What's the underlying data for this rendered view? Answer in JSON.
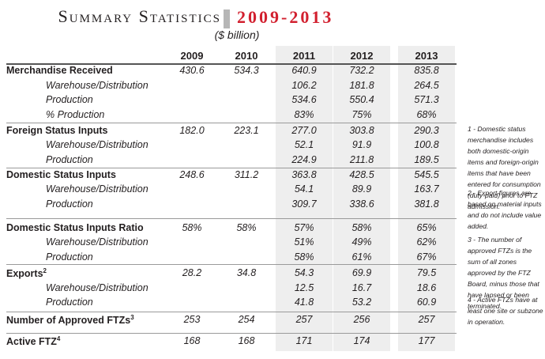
{
  "title": {
    "left": "Summary Statistics",
    "right": "2009-2013",
    "unit": "($ billion)"
  },
  "years": [
    "2009",
    "2010",
    "2011",
    "2012",
    "2013"
  ],
  "rows": [
    {
      "label": "Merchandise Received",
      "type": "main",
      "values": [
        "430.6",
        "534.3",
        "640.9",
        "732.2",
        "835.8"
      ]
    },
    {
      "label": "Warehouse/Distribution",
      "type": "sub",
      "values": [
        "",
        "",
        "106.2",
        "181.8",
        "264.5"
      ]
    },
    {
      "label": "Production",
      "type": "sub",
      "values": [
        "",
        "",
        "534.6",
        "550.4",
        "571.3"
      ]
    },
    {
      "label": "% Production",
      "type": "sub",
      "values": [
        "",
        "",
        "83%",
        "75%",
        "68%"
      ]
    },
    {
      "label": "Foreign Status Inputs",
      "type": "main",
      "values": [
        "182.0",
        "223.1",
        "277.0",
        "303.8",
        "290.3"
      ]
    },
    {
      "label": "Warehouse/Distribution",
      "type": "sub",
      "values": [
        "",
        "",
        "52.1",
        "91.9",
        "100.8"
      ]
    },
    {
      "label": "Production",
      "type": "sub",
      "values": [
        "",
        "",
        "224.9",
        "211.8",
        "189.5"
      ]
    },
    {
      "label": "Domestic Status Inputs",
      "type": "main",
      "values": [
        "248.6",
        "311.2",
        "363.8",
        "428.5",
        "545.5"
      ]
    },
    {
      "label": "Warehouse/Distribution",
      "type": "sub",
      "values": [
        "",
        "",
        "54.1",
        "89.9",
        "163.7"
      ]
    },
    {
      "label": "Production",
      "type": "sub",
      "values": [
        "",
        "",
        "309.7",
        "338.6",
        "381.8"
      ]
    },
    {
      "label": "Domestic Status Inputs Ratio",
      "type": "main",
      "values": [
        "58%",
        "58%",
        "57%",
        "58%",
        "65%"
      ]
    },
    {
      "label": "Warehouse/Distribution",
      "type": "sub",
      "values": [
        "",
        "",
        "51%",
        "49%",
        "62%"
      ]
    },
    {
      "label": "Production",
      "type": "sub",
      "values": [
        "",
        "",
        "58%",
        "61%",
        "67%"
      ]
    },
    {
      "label": "Exports",
      "sup": "2",
      "type": "main",
      "values": [
        "28.2",
        "34.8",
        "54.3",
        "69.9",
        "79.5"
      ]
    },
    {
      "label": "Warehouse/Distribution",
      "type": "sub",
      "values": [
        "",
        "",
        "12.5",
        "16.7",
        "18.6"
      ]
    },
    {
      "label": "Production",
      "type": "sub",
      "values": [
        "",
        "",
        "41.8",
        "53.2",
        "60.9"
      ]
    },
    {
      "label": "Number of Approved FTZs",
      "sup": "3",
      "type": "main",
      "values": [
        "253",
        "254",
        "257",
        "256",
        "257"
      ]
    },
    {
      "label": "Active FTZ",
      "sup": "4",
      "type": "main",
      "values": [
        "168",
        "168",
        "171",
        "174",
        "177"
      ]
    }
  ],
  "notes": [
    "1 - Domestic status merchandise includes both domestic-origin items and foreign-origin items that have been entered for consumption (duty-paid) prior to FTZ admission.",
    "2 - Export figures are based on material inputs and do not include value added.",
    "3 - The number of approved FTZs is the sum of all zones approved by the FTZ Board, minus those that have lapsed or been terminated.",
    "4 - Active FTZs have at least one site or subzone in operation."
  ],
  "colors": {
    "accent": "#d2202f",
    "shade": "#eeeeee",
    "rule": "#9a9a9a"
  }
}
